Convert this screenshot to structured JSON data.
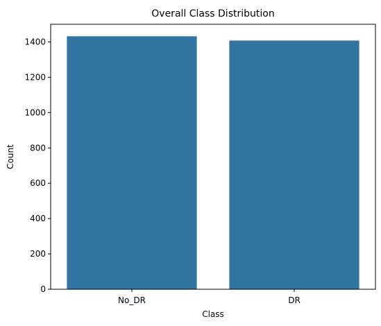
{
  "chart_data": {
    "type": "bar",
    "title": "Overall Class Distribution",
    "xlabel": "Class",
    "ylabel": "Count",
    "categories": [
      "No_DR",
      "DR"
    ],
    "values": [
      1432,
      1408
    ],
    "ylim": [
      0,
      1500
    ],
    "yticks": [
      0,
      200,
      400,
      600,
      800,
      1000,
      1200,
      1400
    ],
    "ytick_labels": [
      "0",
      "200",
      "400",
      "600",
      "800",
      "1000",
      "1200",
      "1400"
    ],
    "grid": false,
    "legend": "none",
    "bar_color": "#3274a1"
  }
}
